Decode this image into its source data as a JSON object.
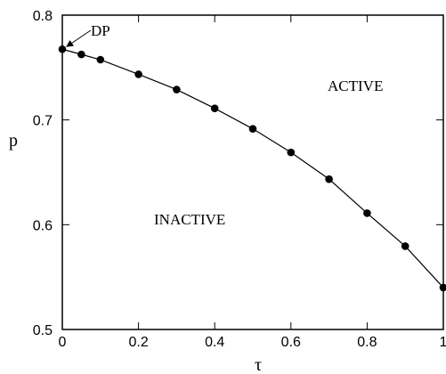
{
  "chart_data": {
    "type": "line",
    "title": "",
    "xlabel": "τ",
    "ylabel": "p",
    "xlim": [
      0,
      1
    ],
    "ylim": [
      0.5,
      0.8
    ],
    "grid": false,
    "x_ticks": [
      0,
      0.2,
      0.4,
      0.6,
      0.8,
      1
    ],
    "x_tick_labels": [
      "0",
      "0.2",
      "0.4",
      "0.6",
      "0.8",
      "1"
    ],
    "y_ticks": [
      0.5,
      0.6,
      0.7,
      0.8
    ],
    "y_tick_labels": [
      "0.5",
      "0.6",
      "0.7",
      "0.8"
    ],
    "series": [
      {
        "x": [
          0,
          0.05,
          0.1,
          0.2,
          0.3,
          0.4,
          0.5,
          0.6,
          0.7,
          0.8,
          0.9,
          1.0
        ],
        "y": [
          0.7675,
          0.7625,
          0.7575,
          0.7435,
          0.729,
          0.711,
          0.6915,
          0.669,
          0.6435,
          0.611,
          0.5795,
          0.54
        ],
        "color": "#000000",
        "marker": "circle"
      }
    ],
    "annotations": [
      {
        "text": "DP",
        "arrow_to": [
          0,
          0.7675
        ]
      },
      {
        "text": "ACTIVE"
      },
      {
        "text": "INACTIVE"
      }
    ]
  }
}
